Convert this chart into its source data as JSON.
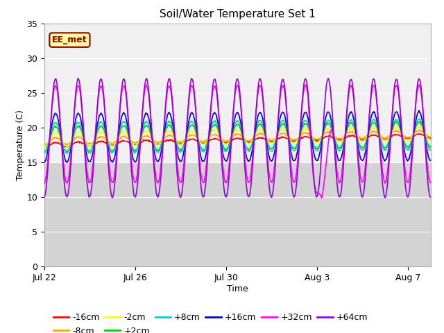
{
  "title": "Soil/Water Temperature Set 1",
  "xlabel": "Time",
  "ylabel": "Temperature (C)",
  "ylim": [
    0,
    35
  ],
  "yticks": [
    0,
    5,
    10,
    15,
    20,
    25,
    30,
    35
  ],
  "annotation_text": "EE_met",
  "annotation_color": "#8B0000",
  "annotation_bg": "#FFFF99",
  "plot_bg_upper": "#F0F0F0",
  "plot_bg_lower": "#D0D0D0",
  "series_colors": {
    "-16cm": "#FF0000",
    "-8cm": "#FFA500",
    "-2cm": "#FFFF00",
    "+2cm": "#00CC00",
    "+8cm": "#00CCCC",
    "+16cm": "#0000CD",
    "+32cm": "#FF00FF",
    "+64cm": "#9400D3"
  },
  "series_params": {
    "-16cm": {
      "base": 17.5,
      "amp": 0.3,
      "trend": 1.3,
      "phase": -1.5
    },
    "-8cm": {
      "base": 18.0,
      "amp": 0.5,
      "trend": 1.1,
      "phase": -1.5
    },
    "-2cm": {
      "base": 18.2,
      "amp": 1.0,
      "trend": 0.9,
      "phase": -1.5
    },
    "+2cm": {
      "base": 18.3,
      "amp": 1.8,
      "trend": 0.7,
      "phase": -1.5
    },
    "+8cm": {
      "base": 18.5,
      "amp": 2.2,
      "trend": 0.5,
      "phase": -1.5
    },
    "+16cm": {
      "base": 18.5,
      "amp": 3.5,
      "trend": 0.3,
      "phase": -1.5
    },
    "+32cm": {
      "base": 19.0,
      "amp": 7.0,
      "trend": 0.1,
      "phase": -1.5
    },
    "+64cm": {
      "base": 18.5,
      "amp": 8.5,
      "trend": 0.0,
      "phase": -1.5
    }
  },
  "xtick_labels": [
    "Jul 22",
    "Jul 26",
    "Jul 30",
    "Aug 3",
    "Aug 7"
  ],
  "xtick_positions": [
    0,
    4,
    8,
    12,
    16
  ],
  "total_days": 17,
  "anomaly_day": 12.2,
  "anomaly_min": 9.8
}
